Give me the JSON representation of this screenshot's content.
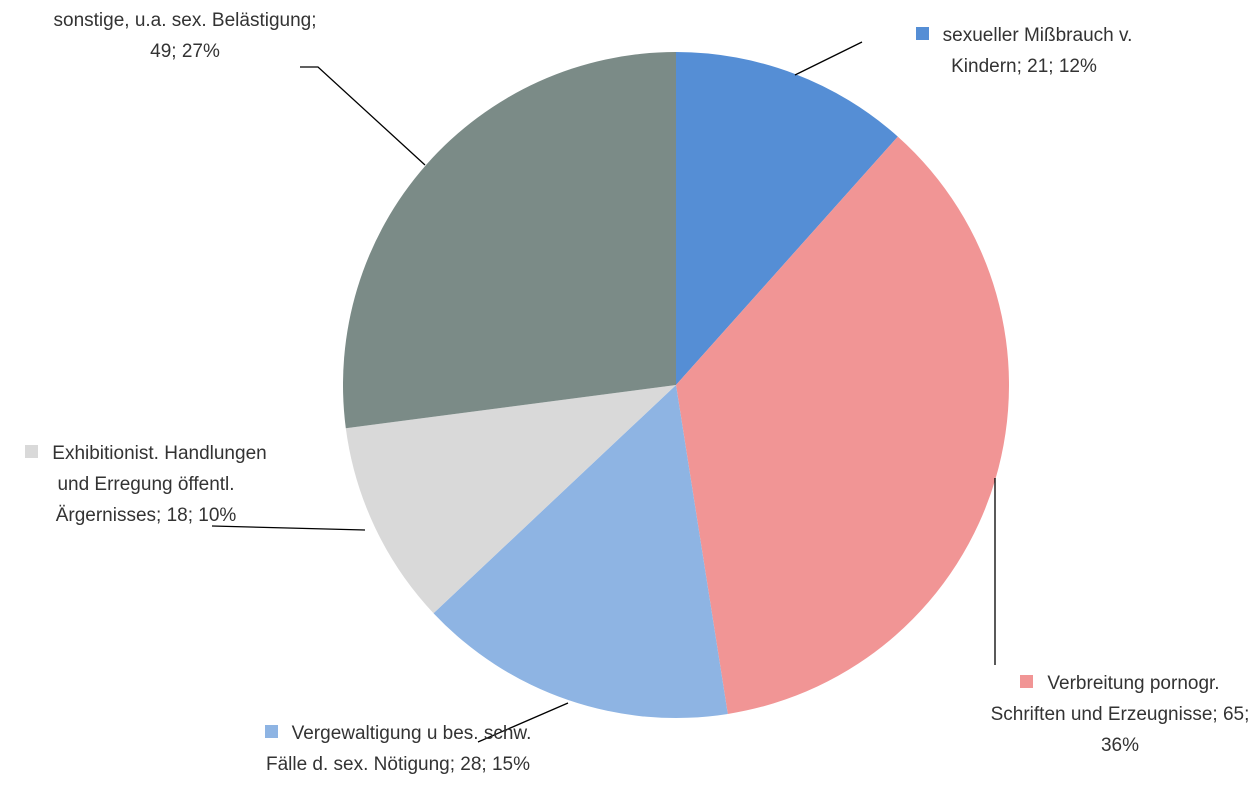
{
  "chart_data": {
    "type": "pie",
    "categories": [
      "sexueller Mißbrauch v. Kindern",
      "Verbreitung pornogr. Schriften und Erzeugnisse",
      "Vergewaltigung u bes. schw. Fälle d. sex. Nötigung",
      "Exhibitionist. Handlungen und Erregung öffentl. Ärgernisses",
      "sonstige, u.a. sex. Belästigung"
    ],
    "values": [
      21,
      65,
      28,
      18,
      49
    ],
    "value_labels": [
      "sexueller Mißbrauch v. Kindern; 21; 12%",
      "Verbreitung pornogr. Schriften und Erzeugnisse; 65; 36%",
      "Vergewaltigung u bes. schw. Fälle d. sex. Nötigung; 28; 15%",
      "Exhibitionist. Handlungen und Erregung öffentl. Ärgernisses; 18; 10%",
      "sonstige, u.a. sex. Belästigung; 49; 27%"
    ],
    "colors": [
      "#558ed5",
      "#f19595",
      "#8eb4e3",
      "#d9d9d9",
      "#7b8b87"
    ]
  }
}
